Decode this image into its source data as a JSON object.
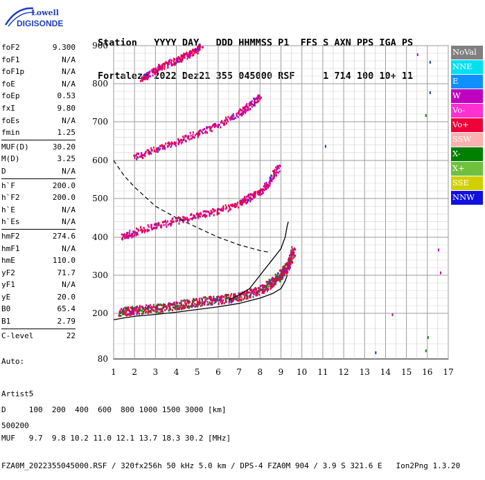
{
  "logo": {
    "line1": "Lowell",
    "line2": "DIGISONDE"
  },
  "header": {
    "line1": "Station   YYYY DAY   DDD HHMMSS P1  FFS S AXN PPS IGA PS",
    "line2": "Fortaleza 2022 Dez21 355 045000 RSF     1 714 100 10+ 11"
  },
  "params": [
    {
      "label": "foF2",
      "value": "9.300"
    },
    {
      "label": "foF1",
      "value": "N/A"
    },
    {
      "label": "foF1p",
      "value": "N/A"
    },
    {
      "label": "foE",
      "value": "N/A"
    },
    {
      "label": "foEp",
      "value": "0.53"
    },
    {
      "label": "fxI",
      "value": "9.80"
    },
    {
      "label": "foEs",
      "value": "N/A"
    },
    {
      "label": "fmin",
      "value": "1.25"
    },
    {
      "sep": true
    },
    {
      "label": "MUF(D)",
      "value": "30.20"
    },
    {
      "label": "M(D)",
      "value": "3.25"
    },
    {
      "label": "D",
      "value": "N/A"
    },
    {
      "sep": true
    },
    {
      "label": "h`F",
      "value": "200.0"
    },
    {
      "label": "h`F2",
      "value": "200.0"
    },
    {
      "label": "h`E",
      "value": "N/A"
    },
    {
      "label": "h`Es",
      "value": "N/A"
    },
    {
      "sep": true
    },
    {
      "label": "hmF2",
      "value": "274.6"
    },
    {
      "label": "hmF1",
      "value": "N/A"
    },
    {
      "label": "hmE",
      "value": "110.0"
    },
    {
      "label": "yF2",
      "value": "71.7"
    },
    {
      "label": "yF1",
      "value": "N/A"
    },
    {
      "label": "yE",
      "value": "20.0"
    },
    {
      "label": "B0",
      "value": "65.4"
    },
    {
      "label": "B1",
      "value": "2.79"
    },
    {
      "sep": true
    },
    {
      "label": "C-level",
      "value": "22"
    }
  ],
  "auto": {
    "line1": "Auto:",
    "line2": "Artist5",
    "line3": "500200"
  },
  "legend": [
    {
      "label": "NoVal",
      "color": "#808080"
    },
    {
      "label": "NNE",
      "color": "#00e0f0"
    },
    {
      "label": "E",
      "color": "#1090ff"
    },
    {
      "label": "W",
      "color": "#c000c0"
    },
    {
      "label": "Vo-",
      "color": "#ff30d0"
    },
    {
      "label": "Vo+",
      "color": "#f00038"
    },
    {
      "label": "SSW",
      "color": "#ffb0b0"
    },
    {
      "label": "X-",
      "color": "#008000"
    },
    {
      "label": "X+",
      "color": "#70c040"
    },
    {
      "label": "SSE",
      "color": "#d0d000"
    },
    {
      "label": "NNW",
      "color": "#1010e0"
    }
  ],
  "footer": {
    "line1": "D     100  200  400  600  800 1000 1500 3000 [km]",
    "line2": "MUF   9.7  9.8 10.2 11.0 12.1 13.7 18.3 30.2 [MHz]",
    "line3": "FZA0M_2022355045000.RSF / 320fx256h 50 kHz 5.0 km / DPS-4 FZA0M 904 / 3.9 S 321.6 E   Ion2Png 1.3.20"
  },
  "chart_data": {
    "type": "scatter",
    "xlim": [
      1,
      17
    ],
    "ylim": [
      80,
      900
    ],
    "x_ticks": [
      "1",
      "2",
      "3",
      "4",
      "5",
      "6",
      "7",
      "8",
      "9",
      "10",
      "11",
      "12",
      "13",
      "14",
      "15",
      "16",
      "17"
    ],
    "y_ticks": [
      "80",
      "200",
      "300",
      "400",
      "500",
      "600",
      "700",
      "800",
      "900"
    ],
    "grid": true,
    "colors": {
      "trace": "#e8004a",
      "trace_x": "#108010",
      "trace_w": "#c000c0",
      "trace_b": "#1040e0",
      "profile": "#000000"
    },
    "traces": [
      {
        "name": "F2 first hop",
        "x": [
          1.3,
          2.0,
          3.0,
          4.0,
          5.0,
          6.0,
          7.0,
          8.0,
          8.6,
          9.0,
          9.3,
          9.6
        ],
        "y": [
          205,
          210,
          215,
          222,
          232,
          238,
          245,
          262,
          285,
          305,
          325,
          370
        ]
      },
      {
        "name": "F2 second hop",
        "x": [
          1.4,
          2.0,
          3.0,
          4.0,
          5.0,
          6.0,
          7.0,
          7.5,
          8.0,
          8.5,
          8.9
        ],
        "y": [
          402,
          415,
          432,
          445,
          458,
          470,
          490,
          505,
          520,
          550,
          590
        ]
      },
      {
        "name": "F2 third hop",
        "x": [
          2.0,
          3.0,
          4.0,
          5.0,
          6.0,
          7.0,
          7.5,
          8.0
        ],
        "y": [
          610,
          630,
          650,
          672,
          695,
          725,
          745,
          770
        ]
      },
      {
        "name": "F2 fourth hop",
        "x": [
          2.3,
          2.8,
          3.2,
          3.8,
          4.3,
          4.8,
          5.2
        ],
        "y": [
          815,
          830,
          845,
          860,
          872,
          885,
          900
        ]
      }
    ],
    "profile": {
      "x": [
        1.0,
        1.5,
        2.0,
        3.0,
        4.0,
        5.0,
        6.0,
        7.0,
        8.0,
        8.6,
        9.0,
        9.2,
        9.3
      ],
      "y": [
        183,
        188,
        192,
        197,
        203,
        210,
        217,
        226,
        240,
        252,
        265,
        285,
        300
      ]
    },
    "profile_upper": {
      "x": [
        6.5,
        7.0,
        7.5,
        8.0,
        8.5,
        9.0,
        9.2,
        9.3,
        9.35
      ],
      "y": [
        235,
        248,
        265,
        300,
        335,
        370,
        400,
        430,
        440
      ]
    },
    "muf_curve": {
      "x": [
        1.0,
        1.5,
        2.0,
        2.5,
        3.0,
        4.0,
        5.0,
        6.0,
        7.0,
        8.0,
        8.5
      ],
      "y": [
        600,
        560,
        530,
        505,
        480,
        450,
        425,
        400,
        380,
        365,
        360
      ]
    },
    "scattered_points": [
      {
        "x": 11.1,
        "y": 640
      },
      {
        "x": 13.5,
        "y": 100
      },
      {
        "x": 14.3,
        "y": 200
      },
      {
        "x": 15.5,
        "y": 880
      },
      {
        "x": 15.9,
        "y": 720
      },
      {
        "x": 16.1,
        "y": 860
      },
      {
        "x": 16.1,
        "y": 780
      },
      {
        "x": 16.5,
        "y": 370
      },
      {
        "x": 16.6,
        "y": 310
      },
      {
        "x": 16.0,
        "y": 140
      },
      {
        "x": 15.9,
        "y": 105
      }
    ]
  }
}
